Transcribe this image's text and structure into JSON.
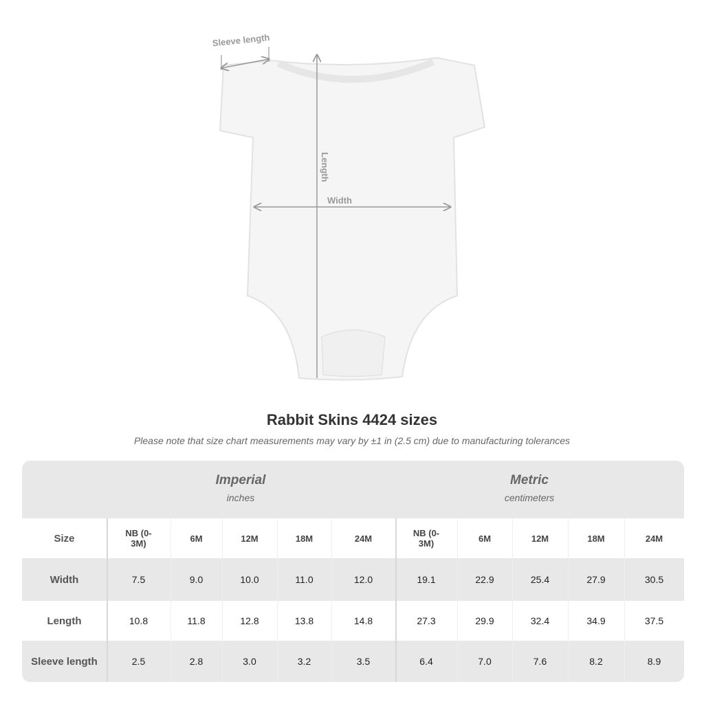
{
  "diagram": {
    "labels": {
      "sleeve_length": "Sleeve length",
      "length": "Length",
      "width": "Width"
    }
  },
  "header": {
    "title": "Rabbit Skins 4424 sizes",
    "note": "Please note that size chart measurements may vary by ±1 in (2.5 cm) due to manufacturing tolerances"
  },
  "table": {
    "groups": [
      {
        "title": "Imperial",
        "unit": "inches"
      },
      {
        "title": "Metric",
        "unit": "centimeters"
      }
    ],
    "header": [
      "Size",
      "NB (0-3M)",
      "6M",
      "12M",
      "18M",
      "24M",
      "NB (0-3M)",
      "6M",
      "12M",
      "18M",
      "24M"
    ],
    "rows": [
      [
        "Width",
        "7.5",
        "9.0",
        "10.0",
        "11.0",
        "12.0",
        "19.1",
        "22.9",
        "25.4",
        "27.9",
        "30.5"
      ],
      [
        "Length",
        "10.8",
        "11.8",
        "12.8",
        "13.8",
        "14.8",
        "27.3",
        "29.9",
        "32.4",
        "34.9",
        "37.5"
      ],
      [
        "Sleeve length",
        "2.5",
        "2.8",
        "3.0",
        "3.2",
        "3.5",
        "6.4",
        "7.0",
        "7.6",
        "8.2",
        "8.9"
      ]
    ]
  }
}
